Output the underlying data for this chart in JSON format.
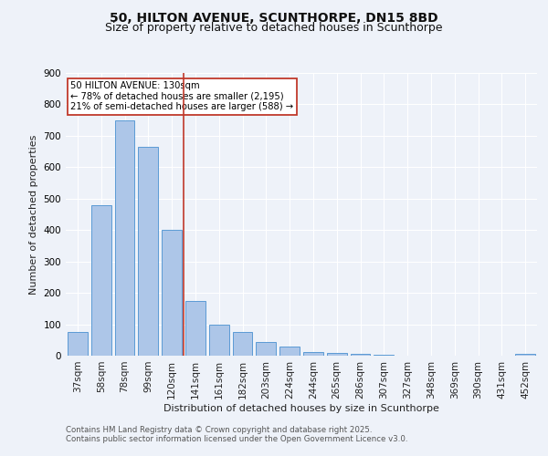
{
  "title": "50, HILTON AVENUE, SCUNTHORPE, DN15 8BD",
  "subtitle": "Size of property relative to detached houses in Scunthorpe",
  "xlabel": "Distribution of detached houses by size in Scunthorpe",
  "ylabel": "Number of detached properties",
  "categories": [
    "37sqm",
    "58sqm",
    "78sqm",
    "99sqm",
    "120sqm",
    "141sqm",
    "161sqm",
    "182sqm",
    "203sqm",
    "224sqm",
    "244sqm",
    "265sqm",
    "286sqm",
    "307sqm",
    "327sqm",
    "348sqm",
    "369sqm",
    "390sqm",
    "431sqm",
    "452sqm"
  ],
  "values": [
    75,
    480,
    750,
    665,
    400,
    175,
    100,
    75,
    43,
    28,
    13,
    10,
    6,
    3,
    1,
    1,
    0,
    0,
    0,
    5
  ],
  "bar_color": "#adc6e8",
  "bar_edge_color": "#5b9bd5",
  "vline_x": 4.5,
  "vline_color": "#c0392b",
  "annotation_line1": "50 HILTON AVENUE: 130sqm",
  "annotation_line2": "← 78% of detached houses are smaller (2,195)",
  "annotation_line3": "21% of semi-detached houses are larger (588) →",
  "annotation_box_color": "#c0392b",
  "background_color": "#eef2f9",
  "grid_color": "#ffffff",
  "footer_line1": "Contains HM Land Registry data © Crown copyright and database right 2025.",
  "footer_line2": "Contains public sector information licensed under the Open Government Licence v3.0.",
  "ylim": [
    0,
    900
  ],
  "yticks": [
    0,
    100,
    200,
    300,
    400,
    500,
    600,
    700,
    800,
    900
  ],
  "title_fontsize": 10,
  "subtitle_fontsize": 9,
  "axis_label_fontsize": 8,
  "tick_fontsize": 7.5,
  "footer_fontsize": 6.2
}
